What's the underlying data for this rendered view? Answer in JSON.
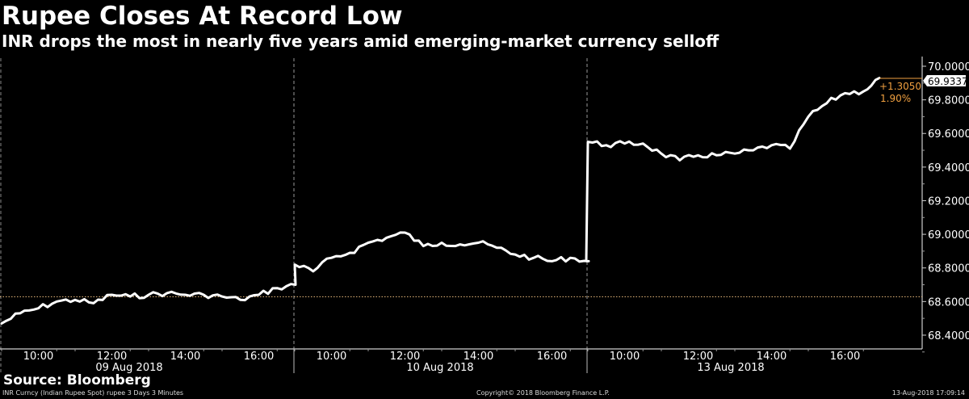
{
  "header": {
    "title": "Rupee Closes At Record Low",
    "subtitle": "INR drops the most in nearly five years amid emerging-market currency selloff"
  },
  "footer": {
    "source": "Source: Bloomberg",
    "ticker_desc": "INR Curncy (Indian Rupee Spot) rupee 3 Days 3 Minutes",
    "copyright": "Copyright© 2018 Bloomberg Finance L.P.",
    "timestamp": "13-Aug-2018 17:09:14"
  },
  "annotations": {
    "last_value": "69.9337",
    "change": "+1.3050",
    "change_pct": "1.90%"
  },
  "colors": {
    "background": "#000000",
    "line": "#ffffff",
    "annotation": "#f0a040",
    "baseline": "#f0c080"
  },
  "chart_data": {
    "type": "line",
    "title": "Rupee Closes At Record Low",
    "subtitle": "INR drops the most in nearly five years amid emerging-market currency selloff",
    "xlabel": "",
    "ylabel": "",
    "ylim": [
      68.35,
      70.05
    ],
    "yticks": [
      "70.0000",
      "69.8000",
      "69.6000",
      "69.4000",
      "69.2000",
      "69.0000",
      "68.8000",
      "68.6000",
      "68.4000"
    ],
    "day_labels": [
      "09 Aug 2018",
      "10 Aug 2018",
      "13 Aug 2018"
    ],
    "xtick_labels": [
      "10:00",
      "12:00",
      "14:00",
      "16:00",
      "10:00",
      "12:00",
      "14:00",
      "16:00",
      "10:00",
      "12:00",
      "14:00",
      "16:00"
    ],
    "grid": false,
    "legend": "none",
    "baseline": 68.6287,
    "last_value": 69.9337,
    "change": 1.305,
    "change_pct": 1.9,
    "series": [
      {
        "name": "INR Curncy (Indian Rupee Spot)",
        "x": [
          "09 Aug 09:00",
          "09 Aug 09:30",
          "09 Aug 10:00",
          "09 Aug 10:30",
          "09 Aug 11:00",
          "09 Aug 11:30",
          "09 Aug 12:00",
          "09 Aug 12:30",
          "09 Aug 13:00",
          "09 Aug 13:30",
          "09 Aug 14:00",
          "09 Aug 14:30",
          "09 Aug 15:00",
          "09 Aug 15:30",
          "09 Aug 16:00",
          "09 Aug 16:30",
          "09 Aug 17:00",
          "10 Aug 09:00",
          "10 Aug 09:30",
          "10 Aug 10:00",
          "10 Aug 10:30",
          "10 Aug 11:00",
          "10 Aug 11:30",
          "10 Aug 12:00",
          "10 Aug 12:30",
          "10 Aug 13:00",
          "10 Aug 13:30",
          "10 Aug 14:00",
          "10 Aug 14:30",
          "10 Aug 15:00",
          "10 Aug 15:30",
          "10 Aug 16:00",
          "10 Aug 16:30",
          "10 Aug 17:00",
          "13 Aug 09:00",
          "13 Aug 09:30",
          "13 Aug 10:00",
          "13 Aug 10:30",
          "13 Aug 11:00",
          "13 Aug 11:30",
          "13 Aug 12:00",
          "13 Aug 12:30",
          "13 Aug 13:00",
          "13 Aug 13:30",
          "13 Aug 14:00",
          "13 Aug 14:30",
          "13 Aug 15:00",
          "13 Aug 15:30",
          "13 Aug 16:00",
          "13 Aug 16:30",
          "13 Aug 17:00"
        ],
        "values": [
          68.47,
          68.53,
          68.56,
          68.6,
          68.61,
          68.59,
          68.64,
          68.63,
          68.64,
          68.65,
          68.64,
          68.64,
          68.63,
          68.61,
          68.64,
          68.68,
          68.7,
          68.82,
          68.78,
          68.86,
          68.89,
          68.95,
          68.98,
          69.01,
          68.93,
          68.95,
          68.94,
          68.95,
          68.92,
          68.88,
          68.86,
          68.84,
          68.86,
          68.84,
          69.55,
          69.53,
          69.54,
          69.54,
          69.48,
          69.44,
          69.47,
          69.47,
          69.48,
          69.5,
          69.53,
          69.51,
          69.7,
          69.78,
          69.84,
          69.85,
          69.93
        ]
      }
    ]
  }
}
